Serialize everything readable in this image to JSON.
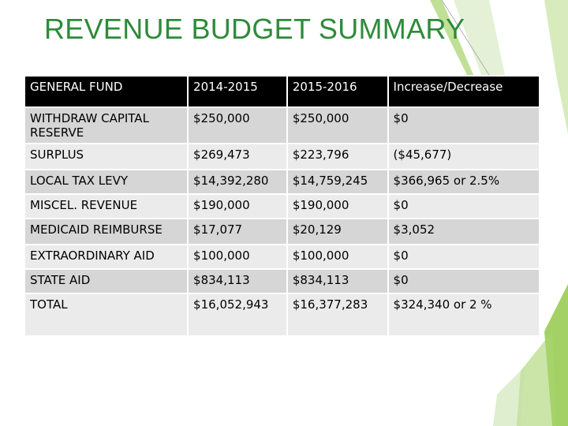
{
  "title": "REVENUE BUDGET SUMMARY",
  "table": {
    "headers": [
      "GENERAL FUND",
      "2014-2015",
      "2015-2016",
      "Increase/Decrease"
    ],
    "rows": [
      [
        "WITHDRAW CAPITAL RESERVE",
        "$250,000",
        "$250,000",
        "$0"
      ],
      [
        "SURPLUS",
        "$269,473",
        "$223,796",
        "($45,677)"
      ],
      [
        "LOCAL TAX LEVY",
        "$14,392,280",
        "$14,759,245",
        "$366,965 or 2.5%"
      ],
      [
        "MISCEL. REVENUE",
        "$190,000",
        "$190,000",
        "$0"
      ],
      [
        "MEDICAID REIMBURSE",
        "$17,077",
        "$20,129",
        "$3,052"
      ],
      [
        "EXTRAORDINARY AID",
        "$100,000",
        "$100,000",
        "$0"
      ],
      [
        "STATE AID",
        "$834,113",
        "$834,113",
        "$0"
      ],
      [
        "TOTAL",
        "$16,052,943",
        "$16,377,283",
        "$324,340 or 2 %"
      ]
    ]
  },
  "colors": {
    "title": "#2e8b3a",
    "header_bg": "#000000",
    "row_bg": "#d6d6d6",
    "row_alt_bg": "#ebebeb",
    "accent_green": "#8dc63f"
  }
}
